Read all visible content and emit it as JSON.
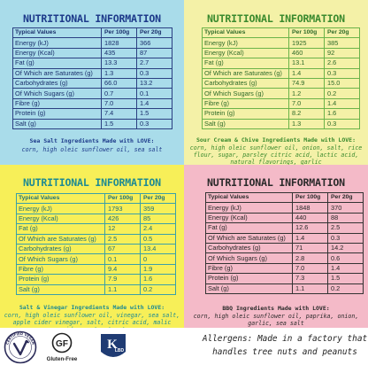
{
  "table_header": {
    "label": "Typical Values",
    "per100": "Per 100g",
    "per20": "Per 20g"
  },
  "panels": {
    "sea": {
      "title": "NUTRITIONAL INFORMATION",
      "rows": [
        {
          "label": "Energy (kJ)",
          "per100": "1828",
          "per20": "366"
        },
        {
          "label": "Energy (Kcal)",
          "per100": "435",
          "per20": "87"
        },
        {
          "label": "Fat (g)",
          "per100": "13.3",
          "per20": "2.7"
        },
        {
          "label": "Of Which are Saturates (g)",
          "per100": "1.3",
          "per20": "0.3"
        },
        {
          "label": "Carbohydrates (g)",
          "per100": "66.0",
          "per20": "13.2"
        },
        {
          "label": "Of Which Sugars (g)",
          "per100": "0.7",
          "per20": "0.1"
        },
        {
          "label": "Fibre (g)",
          "per100": "7.0",
          "per20": "1.4"
        },
        {
          "label": "Protein (g)",
          "per100": "7.4",
          "per20": "1.5"
        },
        {
          "label": "Salt (g)",
          "per100": "1.5",
          "per20": "0.3"
        }
      ],
      "ingredients_title": "Sea Salt Ingredients Made with LOVE:",
      "ingredients": "corn, high oleic sunflower oil, sea salt"
    },
    "sour": {
      "title": "NUTRITIONAL INFORMATION",
      "rows": [
        {
          "label": "Energy (kJ)",
          "per100": "1925",
          "per20": "385"
        },
        {
          "label": "Energy (Kcal)",
          "per100": "460",
          "per20": "92"
        },
        {
          "label": "Fat (g)",
          "per100": "13.1",
          "per20": "2.6"
        },
        {
          "label": "Of Which are Saturates (g)",
          "per100": "1.4",
          "per20": "0.3"
        },
        {
          "label": "Carbohydrates (g)",
          "per100": "74.9",
          "per20": "15.0"
        },
        {
          "label": "Of Which Sugars (g)",
          "per100": "1.2",
          "per20": "0.2"
        },
        {
          "label": "Fibre (g)",
          "per100": "7.0",
          "per20": "1.4"
        },
        {
          "label": "Protein (g)",
          "per100": "8.2",
          "per20": "1.6"
        },
        {
          "label": "Salt (g)",
          "per100": "1.3",
          "per20": "0.3"
        }
      ],
      "ingredients_title": "Sour Cream & Chive Ingredients Made with LOVE:",
      "ingredients": "corn, high oleic sunflower oil, onion, salt, rice flour, sugar, parsley citric acid, lactic acid, natural flavorings, garlic"
    },
    "salt": {
      "title": "NUTRITIONAL INFORMATION",
      "rows": [
        {
          "label": "Energy (kJ)",
          "per100": "1793",
          "per20": "359"
        },
        {
          "label": "Energy (Kcal)",
          "per100": "426",
          "per20": "85"
        },
        {
          "label": "Fat (g)",
          "per100": "12",
          "per20": "2.4"
        },
        {
          "label": "Of Which are Saturates (g)",
          "per100": "2.5",
          "per20": "0.5"
        },
        {
          "label": "Carbohydrates (g)",
          "per100": "67",
          "per20": "13.4"
        },
        {
          "label": "Of Which Sugars (g)",
          "per100": "0.1",
          "per20": "0"
        },
        {
          "label": "Fibre (g)",
          "per100": "9.4",
          "per20": "1.9"
        },
        {
          "label": "Protein (g)",
          "per100": "7.9",
          "per20": "1.6"
        },
        {
          "label": "Salt (g)",
          "per100": "1.1",
          "per20": "0.2"
        }
      ],
      "ingredients_title": "Salt & Vinegar Ingredients Made with LOVE:",
      "ingredients": "corn, high oleic sunflower oil, vinegar, sea salt, apple cider vinegar, salt, citric acid, malic acid, yeast extract"
    },
    "bbq": {
      "title": "NUTRITIONAL INFORMATION",
      "rows": [
        {
          "label": "Energy (kJ)",
          "per100": "1848",
          "per20": "370"
        },
        {
          "label": "Energy (Kcal)",
          "per100": "440",
          "per20": "88"
        },
        {
          "label": "Fat (g)",
          "per100": "12.6",
          "per20": "2.5"
        },
        {
          "label": "Of Which are Saturates (g)",
          "per100": "1.4",
          "per20": "0.3"
        },
        {
          "label": "Carbohydrates (g)",
          "per100": "71",
          "per20": "14.2"
        },
        {
          "label": "Of Which Sugars (g)",
          "per100": "2.8",
          "per20": "0.6"
        },
        {
          "label": "Fibre (g)",
          "per100": "7.0",
          "per20": "1.4"
        },
        {
          "label": "Protein (g)",
          "per100": "7.3",
          "per20": "1.5"
        },
        {
          "label": "Salt (g)",
          "per100": "1.1",
          "per20": "0.2"
        }
      ],
      "ingredients_title": "BBQ Ingredients Made with LOVE:",
      "ingredients": "corn, high oleic sunflower oil, paprika, onion, garlic, sea salt"
    }
  },
  "footer": {
    "badges": [
      {
        "icon": "vegan-badge-icon",
        "text": "CERTIFIED VEGAN"
      },
      {
        "icon": "gluten-free-badge-icon",
        "mark": "GF",
        "text": "Gluten-Free"
      },
      {
        "icon": "kosher-badge-icon",
        "mark": "K",
        "text": "LBD"
      }
    ],
    "allergens": "Allergens: Made in a factory that handles tree nuts and peanuts"
  }
}
